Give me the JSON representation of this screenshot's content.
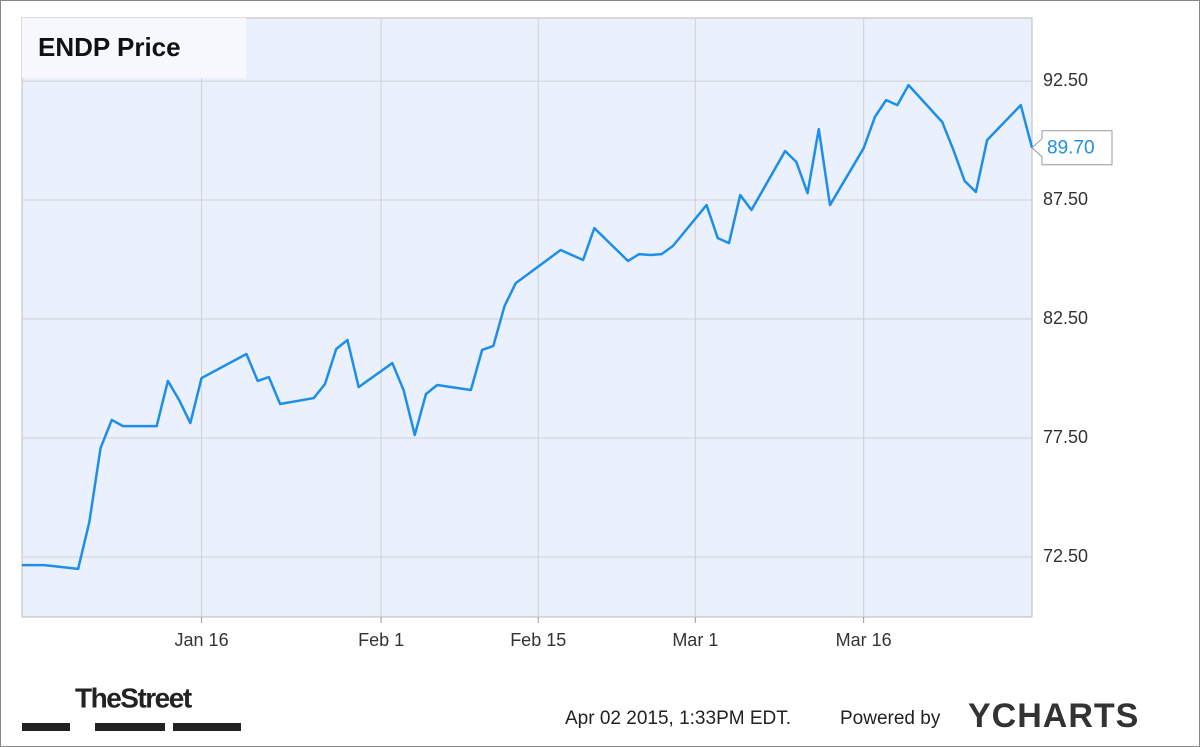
{
  "chart_data": {
    "type": "line",
    "title": "ENDP Price",
    "x": [
      "Dec 31",
      "Jan 2",
      "Jan 5",
      "Jan 6",
      "Jan 7",
      "Jan 8",
      "Jan 9",
      "Jan 12",
      "Jan 13",
      "Jan 14",
      "Jan 15",
      "Jan 16",
      "Jan 20",
      "Jan 21",
      "Jan 22",
      "Jan 23",
      "Jan 26",
      "Jan 27",
      "Jan 28",
      "Jan 29",
      "Jan 30",
      "Feb 2",
      "Feb 3",
      "Feb 4",
      "Feb 5",
      "Feb 6",
      "Feb 9",
      "Feb 10",
      "Feb 11",
      "Feb 12",
      "Feb 13",
      "Feb 17",
      "Feb 18",
      "Feb 19",
      "Feb 20",
      "Feb 23",
      "Feb 24",
      "Feb 25",
      "Feb 26",
      "Feb 27",
      "Mar 2",
      "Mar 3",
      "Mar 4",
      "Mar 5",
      "Mar 6",
      "Mar 9",
      "Mar 10",
      "Mar 11",
      "Mar 12",
      "Mar 13",
      "Mar 16",
      "Mar 17",
      "Mar 18",
      "Mar 19",
      "Mar 20",
      "Mar 23",
      "Mar 24",
      "Mar 25",
      "Mar 26",
      "Mar 27",
      "Mar 30",
      "Mar 31"
    ],
    "series": [
      {
        "name": "ENDP",
        "color": "#1e8fe8",
        "values": [
          72.16,
          72.16,
          72.0,
          73.97,
          77.08,
          78.26,
          78.0,
          78.0,
          79.9,
          79.1,
          78.13,
          80.02,
          81.03,
          79.9,
          80.06,
          78.93,
          79.18,
          79.77,
          81.24,
          81.62,
          79.64,
          80.65,
          79.52,
          77.63,
          79.35,
          79.73,
          79.52,
          81.2,
          81.37,
          83.05,
          84.01,
          85.4,
          85.19,
          84.98,
          86.32,
          84.94,
          85.23,
          85.19,
          85.23,
          85.57,
          87.29,
          85.9,
          85.69,
          87.71,
          87.08,
          89.56,
          89.1,
          87.79,
          90.48,
          87.29,
          89.68,
          90.99,
          91.7,
          91.49,
          92.33,
          90.78,
          89.6,
          88.3,
          87.84,
          90.02,
          91.49,
          89.7
        ],
        "value_labels": [
          null,
          null,
          null,
          null,
          null,
          null,
          null,
          null,
          null,
          null,
          null,
          null,
          null,
          null,
          null,
          null,
          null,
          null,
          null,
          null,
          null,
          null,
          null,
          null,
          null,
          null,
          null,
          null,
          null,
          null,
          null,
          null,
          null,
          null,
          null,
          null,
          null,
          null,
          null,
          null,
          null,
          null,
          null,
          null,
          null,
          null,
          null,
          null,
          null,
          null,
          null,
          null,
          null,
          null,
          null,
          null,
          null,
          null,
          null,
          null,
          null,
          "89.70"
        ]
      }
    ],
    "xlim": [
      "Dec 31",
      "Mar 31"
    ],
    "xticks": [
      "Jan 16",
      "Feb 1",
      "Feb 15",
      "Mar 1",
      "Mar 16"
    ],
    "ylim": [
      69.98,
      95.15
    ],
    "yticks": [
      {
        "value": 72.5,
        "label": "72.50"
      },
      {
        "value": 77.5,
        "label": "77.50"
      },
      {
        "value": 82.5,
        "label": "82.50"
      },
      {
        "value": 87.5,
        "label": "87.50"
      },
      {
        "value": 92.5,
        "label": "92.50"
      }
    ],
    "grid": true
  },
  "branding": {
    "publisher": "TheStreet",
    "timestamp": "Apr 02 2015, 1:33PM EDT.",
    "powered_by": "Powered by",
    "provider": "YCHARTS"
  }
}
